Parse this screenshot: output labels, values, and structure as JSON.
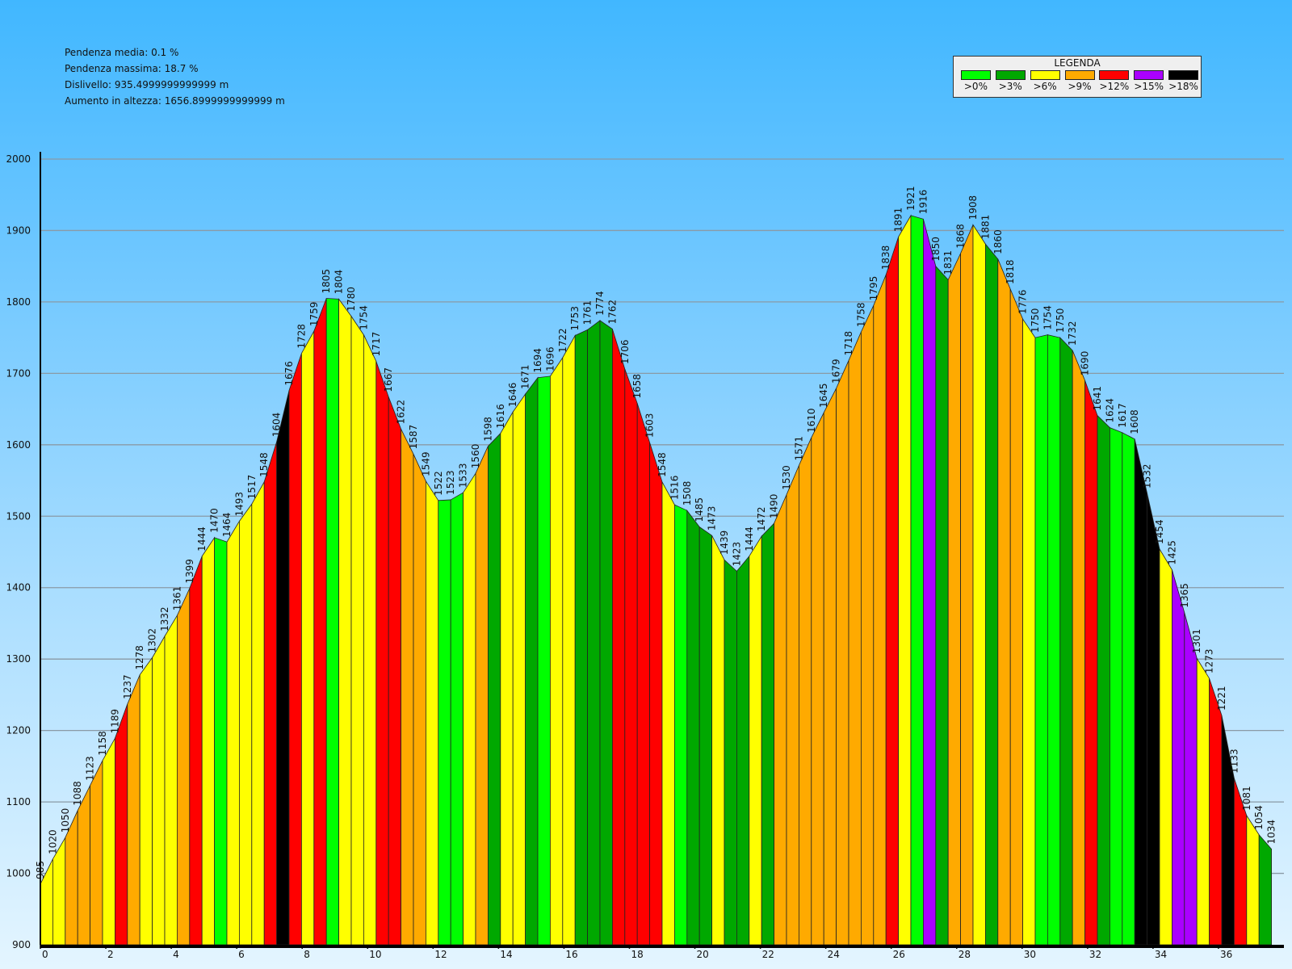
{
  "stats": {
    "avg_grade": "Pendenza media: 0.1 %",
    "max_grade": "Pendenza massima: 18.7 %",
    "drop": "Dislivello: 935.4999999999999 m",
    "gain": "Aumento in altezza: 1656.8999999999999 m"
  },
  "legend": {
    "title": "LEGENDA",
    "items": [
      {
        "label": ">0%",
        "color": "#00ff00"
      },
      {
        "label": ">3%",
        "color": "#00a800"
      },
      {
        "label": ">6%",
        "color": "#ffff00"
      },
      {
        "label": ">9%",
        "color": "#ffaa00"
      },
      {
        "label": ">12%",
        "color": "#ff0000"
      },
      {
        "label": ">15%",
        "color": "#aa00ff"
      },
      {
        "label": ">18%",
        "color": "#000000"
      }
    ]
  },
  "chart_data": {
    "type": "area",
    "xlim": [
      0,
      38
    ],
    "ylim": [
      900,
      2000
    ],
    "x_ticks": [
      0,
      2,
      4,
      6,
      8,
      10,
      12,
      14,
      16,
      18,
      20,
      22,
      24,
      26,
      28,
      30,
      32,
      34,
      36
    ],
    "y_ticks": [
      900,
      1000,
      1100,
      1200,
      1300,
      1400,
      1500,
      1600,
      1700,
      1800,
      1900,
      2000
    ],
    "grid": true,
    "segment_length_km": 0.38,
    "elevations": [
      985,
      1020,
      1050,
      1088,
      1123,
      1158,
      1189,
      1237,
      1278,
      1302,
      1332,
      1361,
      1399,
      1444,
      1470,
      1464,
      1493,
      1517,
      1548,
      1604,
      1676,
      1728,
      1759,
      1805,
      1804,
      1780,
      1754,
      1717,
      1667,
      1622,
      1587,
      1549,
      1522,
      1523,
      1533,
      1560,
      1598,
      1616,
      1646,
      1671,
      1694,
      1696,
      1722,
      1753,
      1761,
      1774,
      1762,
      1706,
      1658,
      1603,
      1548,
      1516,
      1508,
      1485,
      1473,
      1439,
      1423,
      1444,
      1472,
      1490,
      1530,
      1571,
      1610,
      1645,
      1679,
      1718,
      1758,
      1795,
      1838,
      1891,
      1921,
      1916,
      1850,
      1831,
      1868,
      1908,
      1881,
      1860,
      1818,
      1776,
      1750,
      1754,
      1750,
      1732,
      1690,
      1641,
      1624,
      1617,
      1608,
      1532,
      1454,
      1425,
      1365,
      1301,
      1273,
      1221,
      1133,
      1081,
      1054,
      1034
    ],
    "grade_classes": [
      ">6%",
      ">6%",
      ">9%",
      ">9%",
      ">9%",
      ">6%",
      ">12%",
      ">9%",
      ">6%",
      ">6%",
      ">6%",
      ">9%",
      ">12%",
      ">6%",
      ">0%",
      ">6%",
      ">6%",
      ">6%",
      ">12%",
      ">18%",
      ">12%",
      ">6%",
      ">12%",
      ">0%",
      ">6%",
      ">6%",
      ">6%",
      ">12%",
      ">12%",
      ">9%",
      ">9%",
      ">6%",
      ">0%",
      ">0%",
      ">6%",
      ">9%",
      ">3%",
      ">6%",
      ">6%",
      ">3%",
      ">0%",
      ">6%",
      ">6%",
      ">3%",
      ">3%",
      ">3%",
      ">12%",
      ">12%",
      ">12%",
      ">12%",
      ">6%",
      ">0%",
      ">3%",
      ">3%",
      ">6%",
      ">3%",
      ">3%",
      ">6%",
      ">3%",
      ">9%",
      ">9%",
      ">9%",
      ">9%",
      ">9%",
      ">9%",
      ">9%",
      ">9%",
      ">9%",
      ">12%",
      ">6%",
      ">0%",
      ">15%",
      ">3%",
      ">9%",
      ">9%",
      ">6%",
      ">3%",
      ">9%",
      ">9%",
      ">6%",
      ">0%",
      ">0%",
      ">3%",
      ">9%",
      ">12%",
      ">3%",
      ">0%",
      ">0%",
      ">18%",
      ">18%",
      ">6%",
      ">15%",
      ">15%",
      ">6%",
      ">12%",
      ">18%",
      ">12%",
      ">6%",
      ">3%"
    ]
  }
}
